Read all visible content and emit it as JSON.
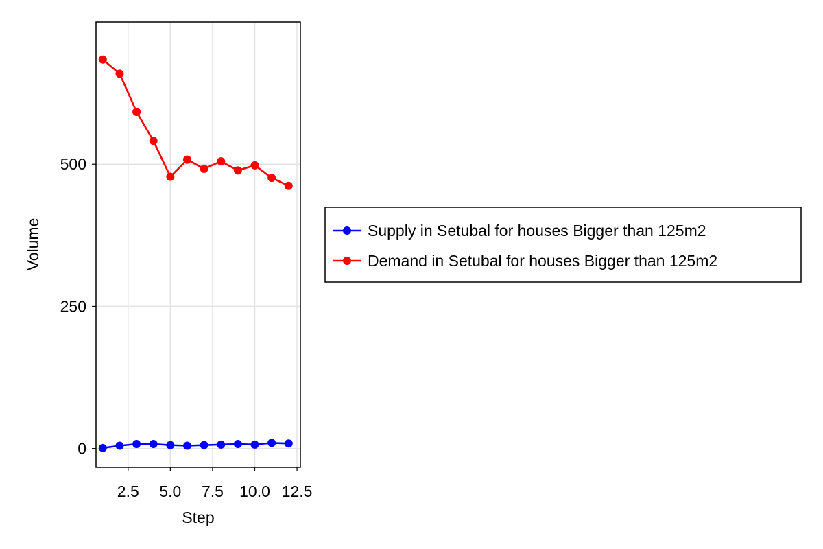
{
  "chart_data": {
    "type": "line",
    "xlabel": "Step",
    "ylabel": "Volume",
    "xlim": [
      0.6,
      12.7
    ],
    "ylim": [
      -33,
      750
    ],
    "x_ticks": [
      2.5,
      5.0,
      7.5,
      10.0,
      12.5
    ],
    "x_tick_labels": [
      "2.5",
      "5.0",
      "7.5",
      "10.0",
      "12.5"
    ],
    "y_ticks": [
      0,
      250,
      500
    ],
    "y_tick_labels": [
      "0",
      "250",
      "500"
    ],
    "grid": true,
    "legend_position": "right",
    "x": [
      1,
      2,
      3,
      4,
      5,
      6,
      7,
      8,
      9,
      10,
      11,
      12
    ],
    "series": [
      {
        "name": "Supply in Setubal for houses Bigger than 125m2",
        "color": "#0000ff",
        "values": [
          1,
          5,
          8,
          8,
          6,
          5,
          6,
          7,
          8,
          7,
          10,
          9
        ]
      },
      {
        "name": "Demand in Setubal for houses Bigger than 125m2",
        "color": "#ff0000",
        "values": [
          684,
          659,
          592,
          541,
          478,
          508,
          492,
          505,
          489,
          498,
          476,
          462
        ]
      }
    ]
  }
}
